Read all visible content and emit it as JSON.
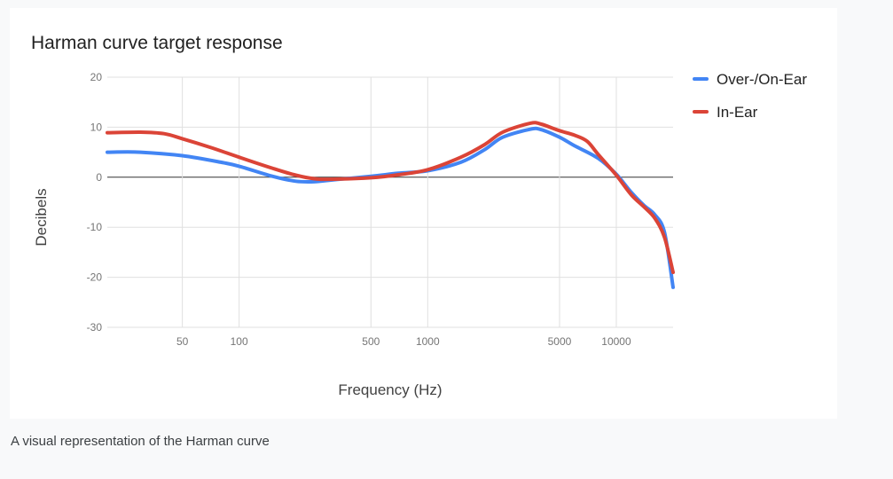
{
  "chart_data": {
    "type": "line",
    "title": "Harman curve target response",
    "xlabel": "Frequency (Hz)",
    "ylabel": "Decibels",
    "x_scale": "log",
    "xlim": [
      20,
      20000
    ],
    "ylim": [
      -30,
      20
    ],
    "x_ticks": [
      50,
      100,
      500,
      1000,
      5000,
      10000
    ],
    "x_tick_labels": [
      "50",
      "100",
      "500",
      "1000",
      "5000",
      "10000"
    ],
    "y_ticks": [
      20,
      10,
      0,
      -10,
      -20,
      -30
    ],
    "y_tick_labels": [
      "20",
      "10",
      "0",
      "-10",
      "-20",
      "-30"
    ],
    "grid": true,
    "legend_position": "right",
    "series": [
      {
        "name": "Over-/On-Ear",
        "color": "#4285f4",
        "points": [
          [
            20,
            5
          ],
          [
            30,
            5
          ],
          [
            50,
            4.3
          ],
          [
            80,
            3
          ],
          [
            100,
            2.2
          ],
          [
            150,
            0.2
          ],
          [
            200,
            -0.8
          ],
          [
            250,
            -0.9
          ],
          [
            300,
            -0.6
          ],
          [
            500,
            0.2
          ],
          [
            700,
            0.8
          ],
          [
            1000,
            1.3
          ],
          [
            1500,
            3
          ],
          [
            2000,
            5.5
          ],
          [
            2500,
            8
          ],
          [
            3500,
            9.6
          ],
          [
            4000,
            9.5
          ],
          [
            5000,
            8
          ],
          [
            6000,
            6.3
          ],
          [
            8000,
            3.8
          ],
          [
            10000,
            0.6
          ],
          [
            12000,
            -3
          ],
          [
            14000,
            -5.6
          ],
          [
            16000,
            -7.5
          ],
          [
            18000,
            -11
          ],
          [
            20000,
            -22
          ]
        ]
      },
      {
        "name": "In-Ear",
        "color": "#db4437",
        "points": [
          [
            20,
            8.9
          ],
          [
            30,
            9
          ],
          [
            40,
            8.7
          ],
          [
            50,
            7.7
          ],
          [
            70,
            6
          ],
          [
            100,
            4
          ],
          [
            150,
            1.8
          ],
          [
            200,
            0.4
          ],
          [
            250,
            -0.3
          ],
          [
            300,
            -0.4
          ],
          [
            500,
            -0.1
          ],
          [
            700,
            0.5
          ],
          [
            1000,
            1.5
          ],
          [
            1500,
            4
          ],
          [
            2000,
            6.5
          ],
          [
            2500,
            9
          ],
          [
            3500,
            10.8
          ],
          [
            4000,
            10.6
          ],
          [
            5000,
            9.3
          ],
          [
            6000,
            8.4
          ],
          [
            7000,
            7.2
          ],
          [
            8000,
            4.6
          ],
          [
            10000,
            0.4
          ],
          [
            12000,
            -3.5
          ],
          [
            14000,
            -5.9
          ],
          [
            16000,
            -8.2
          ],
          [
            18000,
            -12
          ],
          [
            20000,
            -19
          ]
        ]
      }
    ]
  },
  "caption": "A visual representation of the Harman curve"
}
